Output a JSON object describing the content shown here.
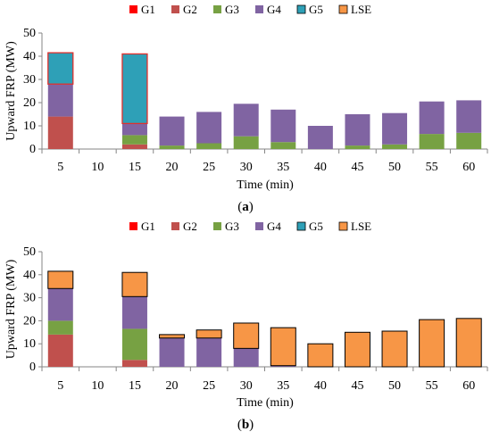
{
  "chart_data": [
    {
      "type": "bar",
      "stacked": true,
      "panel_label": "a",
      "categories": [
        "5",
        "10",
        "15",
        "20",
        "25",
        "30",
        "35",
        "40",
        "45",
        "50",
        "55",
        "60"
      ],
      "ylabel": "Upward FRP (MW)",
      "xlabel": "Time (min)",
      "ylim": [
        0,
        50
      ],
      "yticks": [
        0,
        10,
        20,
        30,
        40,
        50
      ],
      "grid": false,
      "legend_position": "top",
      "series": [
        {
          "name": "G1",
          "color": "#ff0000",
          "values": [
            0,
            0,
            0,
            0,
            0,
            0,
            0,
            0,
            0,
            0,
            0,
            0
          ]
        },
        {
          "name": "G2",
          "color": "#c0504d",
          "values": [
            14,
            0,
            2,
            0,
            0,
            0,
            0,
            0,
            0,
            0,
            0,
            0
          ]
        },
        {
          "name": "G3",
          "color": "#77a143",
          "values": [
            0,
            0,
            4,
            1.5,
            2.5,
            5.5,
            3,
            0,
            1.5,
            2,
            6.5,
            7
          ]
        },
        {
          "name": "G4",
          "color": "#8064a2",
          "values": [
            14,
            0,
            5,
            12.5,
            13.5,
            14,
            14,
            10,
            13.5,
            13.5,
            14,
            14
          ]
        },
        {
          "name": "G5",
          "color": "#2ea0b7",
          "values": [
            13.5,
            0,
            30,
            0,
            0,
            0,
            0,
            0,
            0,
            0,
            0,
            0
          ]
        },
        {
          "name": "LSE",
          "color": "#f79646",
          "values": [
            0,
            0,
            0,
            0,
            0,
            0,
            0,
            0,
            0,
            0,
            0,
            0
          ]
        }
      ]
    },
    {
      "type": "bar",
      "stacked": true,
      "panel_label": "b",
      "categories": [
        "5",
        "10",
        "15",
        "20",
        "25",
        "30",
        "35",
        "40",
        "45",
        "50",
        "55",
        "60"
      ],
      "ylabel": "Upward FRP (MW)",
      "xlabel": "Time (min)",
      "ylim": [
        0,
        50
      ],
      "yticks": [
        0,
        10,
        20,
        30,
        40,
        50
      ],
      "grid": false,
      "legend_position": "top",
      "series": [
        {
          "name": "G1",
          "color": "#ff0000",
          "values": [
            0,
            0,
            0,
            0,
            0,
            0,
            0,
            0,
            0,
            0,
            0,
            0
          ]
        },
        {
          "name": "G2",
          "color": "#c0504d",
          "values": [
            14,
            0,
            3,
            0,
            0,
            0,
            0,
            0,
            0,
            0,
            0,
            0
          ]
        },
        {
          "name": "G3",
          "color": "#77a143",
          "values": [
            6,
            0,
            13.5,
            0,
            0,
            0,
            0,
            0,
            0,
            0,
            0,
            0
          ]
        },
        {
          "name": "G4",
          "color": "#8064a2",
          "values": [
            14,
            0,
            14,
            12.5,
            12.5,
            8,
            0.5,
            0,
            0,
            0,
            0,
            0
          ]
        },
        {
          "name": "G5",
          "color": "#2ea0b7",
          "values": [
            0,
            0,
            0,
            0,
            0,
            0,
            0,
            0,
            0,
            0,
            0,
            0
          ]
        },
        {
          "name": "LSE",
          "color": "#f79646",
          "values": [
            7.5,
            0,
            10.5,
            1.5,
            3.5,
            11,
            16.5,
            10,
            15,
            15.5,
            20.5,
            21
          ]
        }
      ]
    }
  ]
}
